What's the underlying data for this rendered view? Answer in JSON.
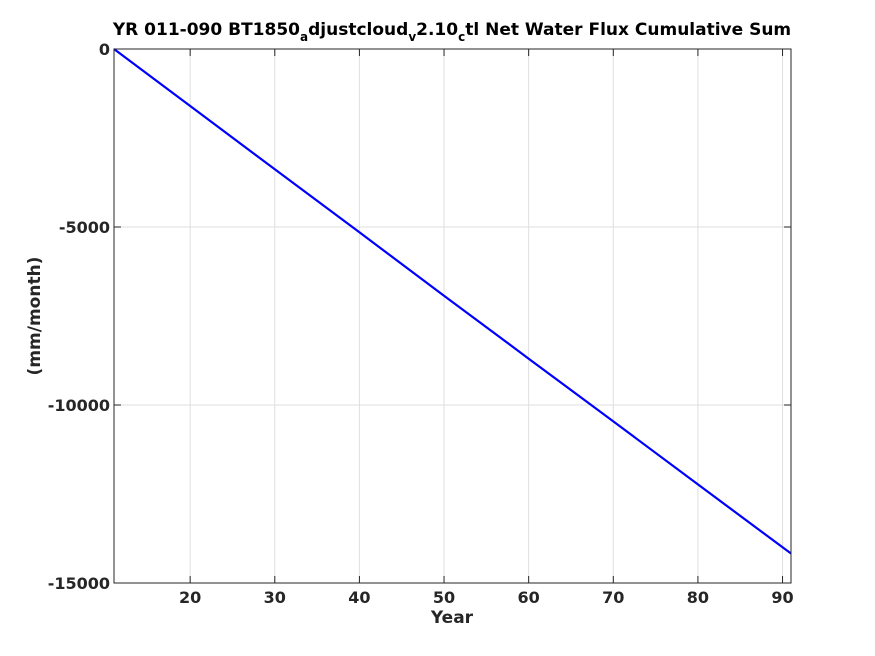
{
  "chart_data": {
    "type": "line",
    "title_parts": [
      {
        "text": "YR 011-090 BT1850",
        "sub": false
      },
      {
        "text": "a",
        "sub": true
      },
      {
        "text": "djustcloud",
        "sub": false
      },
      {
        "text": "v",
        "sub": true
      },
      {
        "text": "2.10",
        "sub": false
      },
      {
        "text": "c",
        "sub": true
      },
      {
        "text": "tl Net Water Flux Cumulative Sum",
        "sub": false
      }
    ],
    "xlabel": "Year",
    "ylabel": "(mm/month)",
    "xlim": [
      11,
      91
    ],
    "ylim": [
      -15000,
      0
    ],
    "xticks": [
      20,
      30,
      40,
      50,
      60,
      70,
      80,
      90
    ],
    "yticks": [
      0,
      -5000,
      -10000,
      -15000
    ],
    "grid": true,
    "series": [
      {
        "color": "#0000ff",
        "x": [
          11,
          20,
          30,
          40,
          50,
          60,
          70,
          80,
          91
        ],
        "y": [
          0,
          -1600,
          -3380,
          -5150,
          -6930,
          -8700,
          -10460,
          -12230,
          -14170
        ]
      }
    ]
  }
}
